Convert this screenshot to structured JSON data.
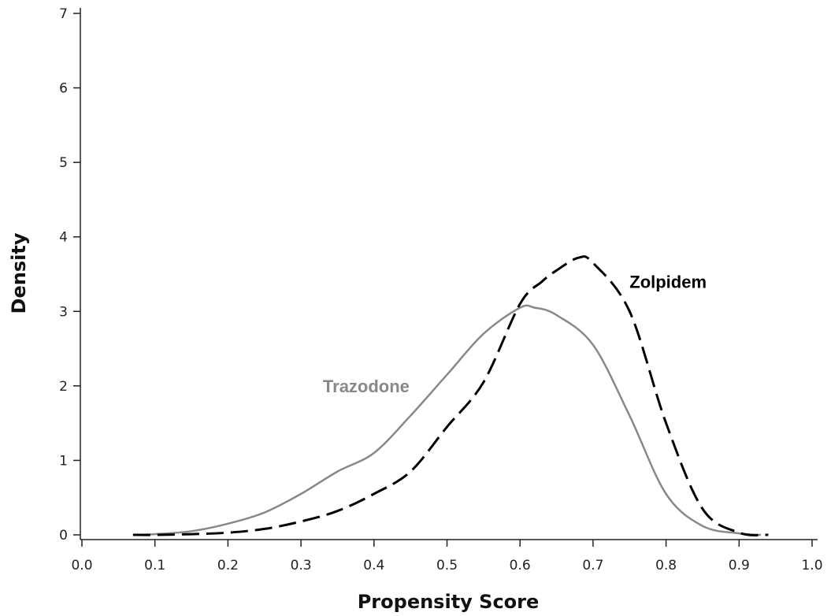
{
  "chart_data": {
    "type": "line",
    "xlabel": "Propensity Score",
    "ylabel": "Density",
    "xlim": [
      0.0,
      1.0
    ],
    "ylim": [
      0,
      7
    ],
    "x_ticks": [
      "0.0",
      "0.1",
      "0.2",
      "0.3",
      "0.4",
      "0.5",
      "0.6",
      "0.7",
      "0.8",
      "0.9",
      "1.0"
    ],
    "y_ticks": [
      "0",
      "1",
      "2",
      "3",
      "4",
      "5",
      "6",
      "7"
    ],
    "grid": false,
    "legend": "none",
    "series": [
      {
        "name": "Trazodone",
        "style": "solid",
        "color": "#888888",
        "x": [
          0.07,
          0.1,
          0.15,
          0.2,
          0.25,
          0.3,
          0.35,
          0.4,
          0.45,
          0.5,
          0.55,
          0.6,
          0.62,
          0.65,
          0.7,
          0.75,
          0.8,
          0.85,
          0.9,
          0.93
        ],
        "y": [
          0.0,
          0.01,
          0.05,
          0.15,
          0.3,
          0.55,
          0.85,
          1.1,
          1.6,
          2.15,
          2.7,
          3.05,
          3.05,
          2.95,
          2.55,
          1.6,
          0.55,
          0.12,
          0.02,
          0.0
        ]
      },
      {
        "name": "Zolpidem",
        "style": "dashed",
        "color": "#000000",
        "x": [
          0.07,
          0.1,
          0.15,
          0.2,
          0.25,
          0.3,
          0.35,
          0.4,
          0.45,
          0.5,
          0.55,
          0.6,
          0.63,
          0.65,
          0.68,
          0.7,
          0.75,
          0.8,
          0.85,
          0.9,
          0.94
        ],
        "y": [
          0.0,
          0.0,
          0.01,
          0.03,
          0.08,
          0.18,
          0.32,
          0.55,
          0.85,
          1.45,
          2.05,
          3.1,
          3.4,
          3.55,
          3.72,
          3.65,
          3.0,
          1.5,
          0.35,
          0.03,
          0.0
        ]
      }
    ],
    "annotations": [
      {
        "text": "Trazodone",
        "x": 0.33,
        "y": 2.0,
        "color": "#888888"
      },
      {
        "text": "Zolpidem",
        "x": 0.75,
        "y": 3.4,
        "color": "#000000"
      }
    ]
  }
}
